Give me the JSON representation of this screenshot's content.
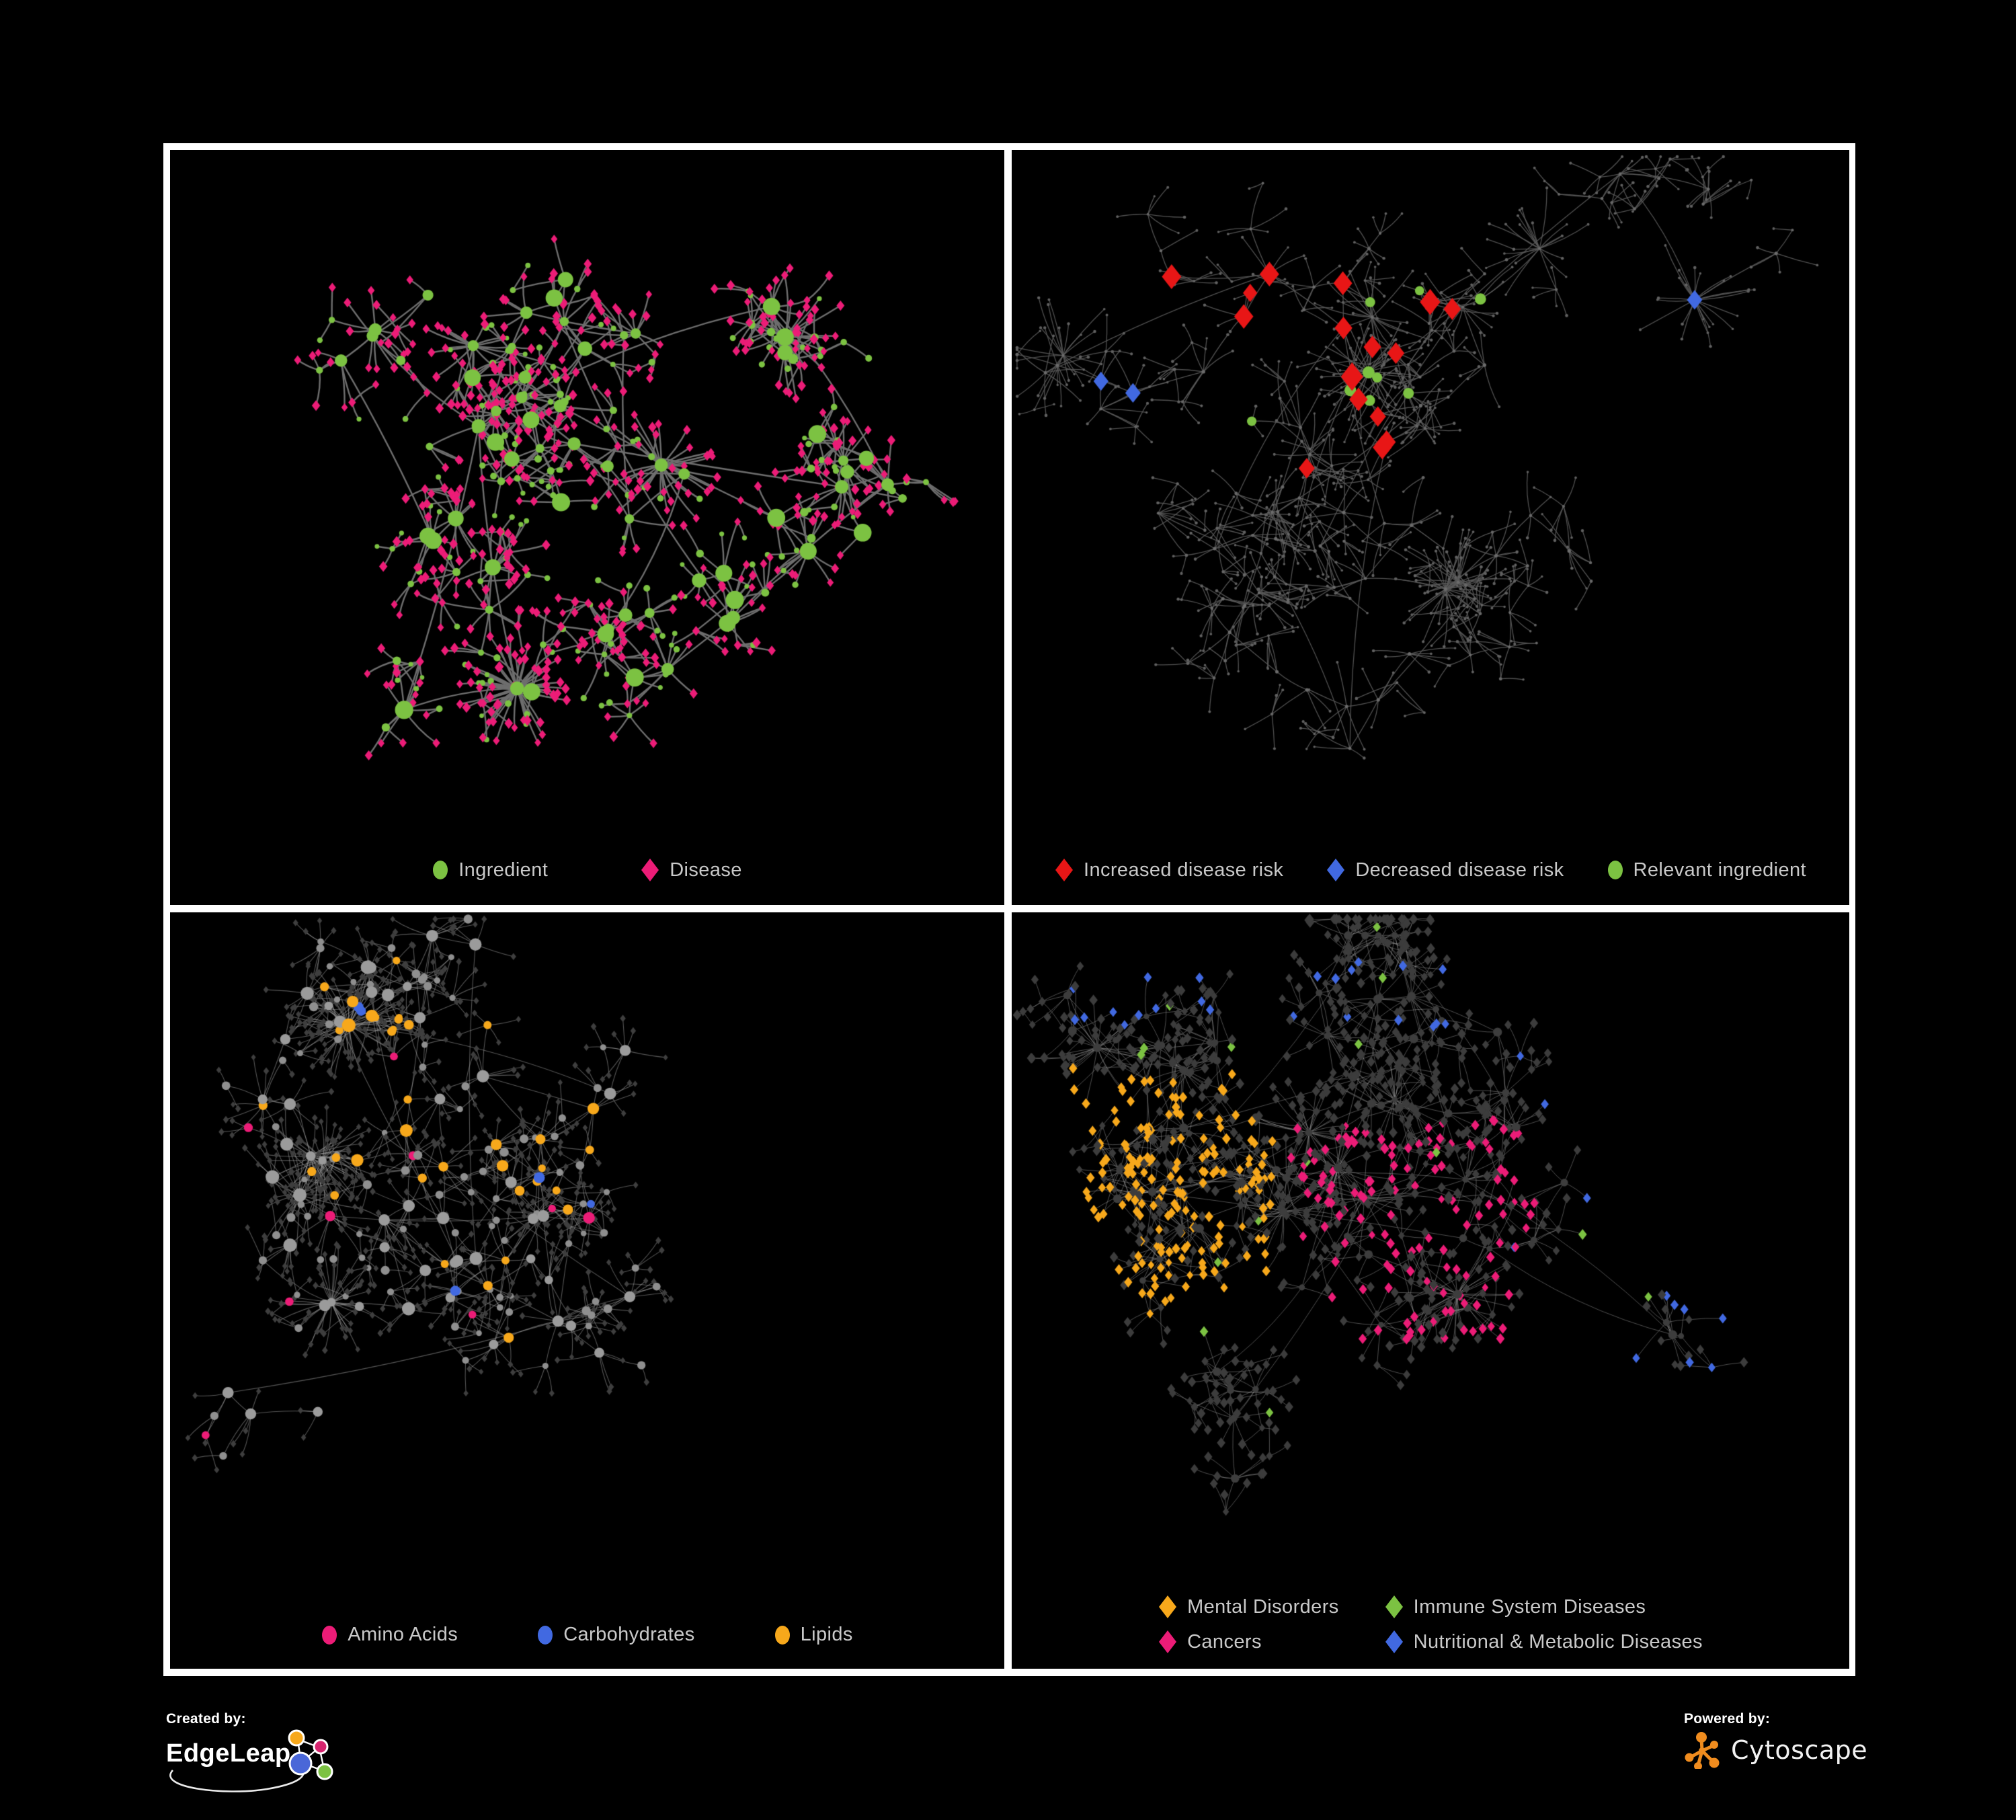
{
  "figure": {
    "background": "#000000",
    "frame_color": "#FFFFFF"
  },
  "palette": {
    "green": "#7CC242",
    "pink": "#EC1C77",
    "red": "#E81616",
    "blue": "#4169E1",
    "orange": "#F7A81B",
    "light_gray": "#B0B0B0",
    "mid_gray": "#9B9B9B",
    "dark_gray": "#3C3C3C",
    "legend_text": "#C9C9C9"
  },
  "panels": [
    {
      "id": "ingredient-disease",
      "legend_layout": "row",
      "legend": [
        {
          "label": "Ingredient",
          "shape": "circle",
          "color": "#7CC242"
        },
        {
          "label": "Disease",
          "shape": "diamond",
          "color": "#EC1C77"
        }
      ],
      "net": {
        "seed": 41,
        "clusters": 8,
        "centers": [
          [
            0.44,
            0.4,
            0.15,
            0.34
          ]
        ],
        "hubs": 62,
        "kid_min": 2,
        "kid_max": 9,
        "mid_prob": 0.3,
        "starbursts": 5,
        "extra_links": 9,
        "legend_space": 110,
        "edge": {
          "color": "#6E6E6E",
          "width": 2.4,
          "alpha": 1
        },
        "rules": {
          "hub": [
            {
              "shape": "circle",
              "color": "#7CC242",
              "s": [
                7,
                16
              ],
              "p": 1
            }
          ],
          "mid": [
            {
              "shape": "diamond",
              "color": "#EC1C77",
              "s": [
                6,
                7.5
              ],
              "p": 0.45
            },
            {
              "shape": "circle",
              "color": "#7CC242",
              "s": [
                4.5,
                7.5
              ],
              "p": 1
            }
          ],
          "leaf": [
            {
              "shape": "diamond",
              "color": "#EC1C77",
              "s": [
                6,
                8
              ],
              "p": 0.8
            },
            {
              "shape": "circle",
              "color": "#7CC242",
              "s": [
                4,
                6
              ],
              "p": 1
            }
          ]
        }
      }
    },
    {
      "id": "disease-risk",
      "legend_layout": "row",
      "legend": [
        {
          "label": "Increased disease risk",
          "shape": "diamond",
          "color": "#E81616"
        },
        {
          "label": "Decreased disease risk",
          "shape": "diamond",
          "color": "#4169E1"
        },
        {
          "label": "Relevant ingredient",
          "shape": "circle",
          "color": "#7CC242"
        }
      ],
      "net": {
        "seed": 97,
        "clusters": 11,
        "centers": [
          [
            0.4,
            0.3,
            0.17,
            0.3
          ]
        ],
        "hubs": 88,
        "kid_min": 2,
        "kid_max": 7,
        "mid_prob": 0.35,
        "starbursts": 7,
        "extra_links": 9,
        "legend_space": 110,
        "edge": {
          "color": "#5A5A5A",
          "width": 1.3,
          "alpha": 0.9
        },
        "rules": {
          "hub": [
            {
              "shape": "diamond",
              "color": "#E81616",
              "s": [
                15,
                21
              ],
              "p": 0.3,
              "region": [
                0.1,
                0.16,
                0.62,
                0.46
              ]
            },
            {
              "shape": "diamond",
              "color": "#4169E1",
              "s": [
                13,
                16
              ],
              "p": 0.35,
              "region": [
                0.04,
                0.26,
                0.16,
                0.4
              ]
            },
            {
              "shape": "diamond",
              "color": "#4169E1",
              "s": [
                13,
                15
              ],
              "p": 0.5,
              "region": [
                0.8,
                0.15,
                0.95,
                0.24
              ]
            },
            {
              "shape": "circle",
              "color": "#7CC242",
              "s": [
                8,
                11
              ],
              "p": 0.3,
              "region": [
                0.08,
                0.16,
                0.7,
                0.52
              ]
            },
            {
              "shape": "diamond",
              "color": "#B0B0B0",
              "s": [
                12,
                16
              ],
              "p": 0.1,
              "region": [
                0.08,
                0.18,
                0.6,
                0.5
              ]
            },
            {
              "shape": "diamond",
              "color": "#E81616",
              "s": [
                13,
                15
              ],
              "p": 0.3,
              "region": [
                0.5,
                0.68,
                0.68,
                0.82
              ]
            },
            {
              "shape": "circle",
              "color": "#6B6B6B",
              "s": [
                2.4,
                3.2
              ],
              "p": 1
            }
          ],
          "mid": [
            {
              "shape": "diamond",
              "color": "#E81616",
              "s": [
                13,
                17
              ],
              "p": 0.1,
              "region": [
                0.12,
                0.18,
                0.6,
                0.44
              ]
            },
            {
              "shape": "circle",
              "color": "#7CC242",
              "s": [
                7,
                9
              ],
              "p": 0.08,
              "region": [
                0.1,
                0.18,
                0.7,
                0.52
              ]
            },
            {
              "shape": "circle",
              "color": "#666666",
              "s": [
                2.2,
                3
              ],
              "p": 1
            }
          ],
          "leaf": [
            {
              "shape": "circle",
              "color": "#606060",
              "s": [
                2,
                2.8
              ],
              "p": 1
            }
          ]
        }
      }
    },
    {
      "id": "nutrient-classes",
      "legend_layout": "row",
      "legend": [
        {
          "label": "Amino Acids",
          "shape": "circle",
          "color": "#EC1C77"
        },
        {
          "label": "Carbohydrates",
          "shape": "circle",
          "color": "#4169E1"
        },
        {
          "label": "Lipids",
          "shape": "circle",
          "color": "#F7A81B"
        }
      ],
      "net": {
        "seed": 63,
        "clusters": 8,
        "centers": [
          [
            0.3,
            0.38,
            0.13,
            0.26
          ],
          [
            0.48,
            0.52,
            0.1,
            0.14
          ]
        ],
        "hubs": 76,
        "kid_min": 2,
        "kid_max": 9,
        "mid_prob": 0.3,
        "starbursts": 6,
        "extra_links": 10,
        "legend_space": 110,
        "edge": {
          "color": "#9B9B9B",
          "width": 1.1,
          "alpha": 0.55
        },
        "rules": {
          "hub": [
            {
              "shape": "circle",
              "color": "#F7A81B",
              "s": [
                8,
                12
              ],
              "p": 0.55,
              "region": [
                0.18,
                0.1,
                0.52,
                0.4
              ]
            },
            {
              "shape": "circle",
              "color": "#4169E1",
              "s": [
                8,
                10
              ],
              "p": 0.25,
              "region": [
                0.2,
                0.1,
                0.5,
                0.38
              ]
            },
            {
              "shape": "circle",
              "color": "#F7A81B",
              "s": [
                7,
                10
              ],
              "p": 0.12
            },
            {
              "shape": "circle",
              "color": "#EC1C77",
              "s": [
                8,
                11
              ],
              "p": 0.09
            },
            {
              "shape": "circle",
              "color": "#4169E1",
              "s": [
                7,
                9
              ],
              "p": 0.04
            },
            {
              "shape": "circle",
              "color": "#9B9B9B",
              "s": [
                7,
                12
              ],
              "p": 1
            }
          ],
          "mid": [
            {
              "shape": "circle",
              "color": "#F7A81B",
              "s": [
                6,
                8
              ],
              "p": 0.3,
              "region": [
                0.18,
                0.1,
                0.52,
                0.4
              ]
            },
            {
              "shape": "circle",
              "color": "#EC1C77",
              "s": [
                6,
                8
              ],
              "p": 0.05
            },
            {
              "shape": "circle",
              "color": "#F7A81B",
              "s": [
                6,
                8
              ],
              "p": 0.06
            },
            {
              "shape": "circle",
              "color": "#8F8F8F",
              "s": [
                5,
                8
              ],
              "p": 1
            }
          ],
          "leaf": [
            {
              "shape": "diamond",
              "color": "#3E3E3E",
              "s": [
                4.5,
                5.5
              ],
              "p": 1
            }
          ]
        }
      }
    },
    {
      "id": "disease-categories",
      "legend_layout": "grid",
      "legend": [
        {
          "label": "Mental Disorders",
          "shape": "diamond",
          "color": "#F7A81B"
        },
        {
          "label": "Immune System Diseases",
          "shape": "diamond",
          "color": "#7CC242"
        },
        {
          "label": "Cancers",
          "shape": "diamond",
          "color": "#EC1C77"
        },
        {
          "label": "Nutritional & Metabolic Diseases",
          "shape": "diamond",
          "color": "#4169E1"
        }
      ],
      "net": {
        "seed": 77,
        "clusters": 9,
        "centers": [
          [
            0.47,
            0.38,
            0.13,
            0.26
          ],
          [
            0.17,
            0.42,
            0.09,
            0.16
          ]
        ],
        "hubs": 82,
        "kid_min": 3,
        "kid_max": 10,
        "mid_prob": 0.32,
        "starbursts": 7,
        "extra_links": 12,
        "legend_space": 155,
        "edge": {
          "color": "#9B9B9B",
          "width": 1.0,
          "alpha": 0.5
        },
        "rules": {
          "hub": [
            {
              "shape": "circle",
              "color": "#3D3D3D",
              "s": [
                5,
                8
              ],
              "p": 1
            }
          ],
          "mid": [
            {
              "shape": "diamond",
              "color": "#F7A81B",
              "s": [
                6,
                7.5
              ],
              "p": 0.4,
              "region": [
                0.02,
                0.22,
                0.3,
                0.62
              ]
            },
            {
              "shape": "diamond",
              "color": "#EC1C77",
              "s": [
                6,
                7.5
              ],
              "p": 0.25,
              "region": [
                0.32,
                0.3,
                0.64,
                0.66
              ]
            },
            {
              "shape": "diamond",
              "color": "#4169E1",
              "s": [
                6,
                7.5
              ],
              "p": 0.18,
              "region": [
                0.6,
                0.18,
                0.98,
                0.75
              ]
            },
            {
              "shape": "diamond",
              "color": "#3C3C3C",
              "s": [
                5.5,
                7
              ],
              "p": 1
            }
          ],
          "leaf": [
            {
              "shape": "diamond",
              "color": "#F7A81B",
              "s": [
                7,
                8
              ],
              "p": 0.6,
              "region": [
                0.02,
                0.22,
                0.3,
                0.62
              ]
            },
            {
              "shape": "diamond",
              "color": "#EC1C77",
              "s": [
                7,
                8
              ],
              "p": 0.4,
              "region": [
                0.32,
                0.3,
                0.64,
                0.66
              ]
            },
            {
              "shape": "diamond",
              "color": "#EC1C77",
              "s": [
                7,
                8
              ],
              "p": 0.35,
              "region": [
                0.8,
                0.16,
                0.95,
                0.26
              ]
            },
            {
              "shape": "diamond",
              "color": "#4169E1",
              "s": [
                7,
                8
              ],
              "p": 0.3,
              "region": [
                0.6,
                0.18,
                0.98,
                0.75
              ]
            },
            {
              "shape": "diamond",
              "color": "#4169E1",
              "s": [
                7,
                8
              ],
              "p": 0.22,
              "region": [
                0.02,
                0.02,
                0.98,
                0.16
              ]
            },
            {
              "shape": "diamond",
              "color": "#7CC242",
              "s": [
                7,
                8
              ],
              "p": 0.03
            },
            {
              "shape": "diamond",
              "color": "#3C3C3C",
              "s": [
                6.5,
                8
              ],
              "p": 1
            }
          ]
        }
      }
    }
  ],
  "footer": {
    "created_by": {
      "caption": "Created by:",
      "brand": "EdgeLeap"
    },
    "powered_by": {
      "caption": "Powered by:",
      "brand": "Cytoscape"
    },
    "cytoscape_orange": "#F08C1E",
    "edgeleap_node_colors": [
      "#F7A81B",
      "#D6246E",
      "#4A67D8",
      "#7CC242"
    ]
  }
}
